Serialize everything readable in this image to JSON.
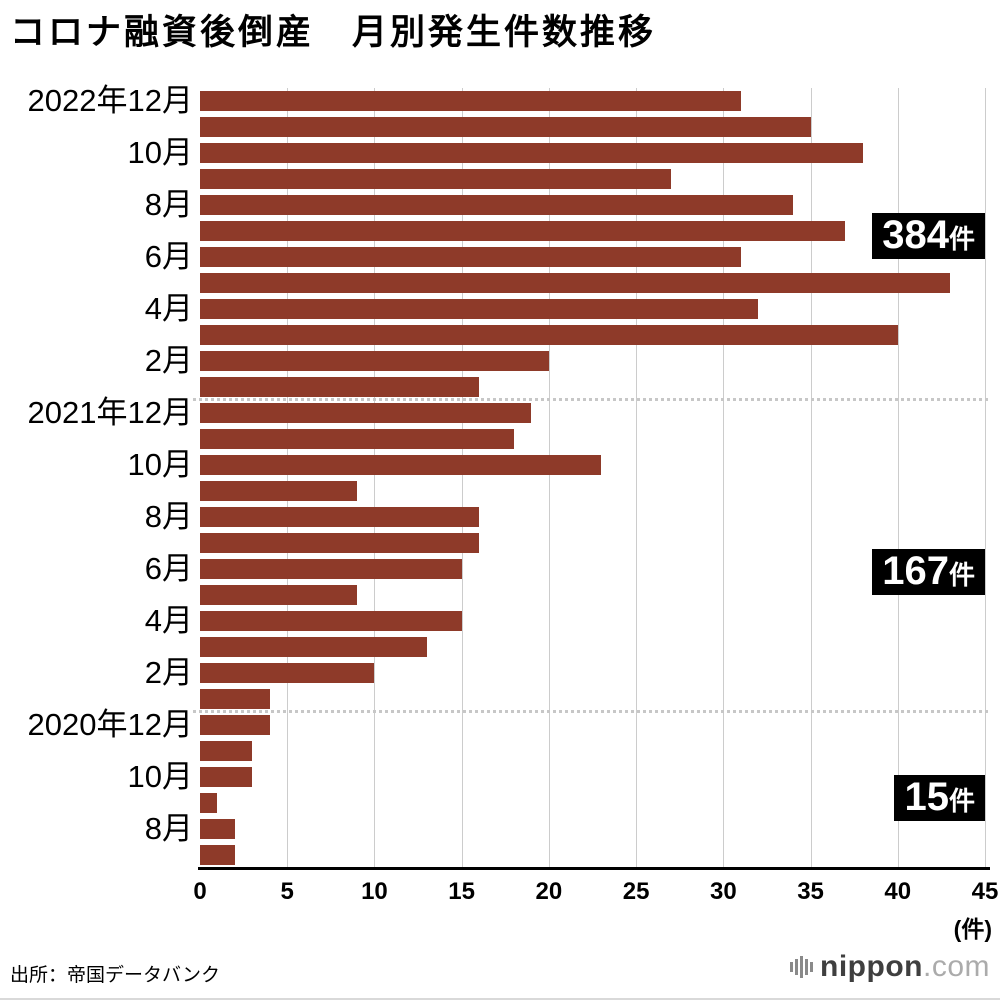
{
  "title": "コロナ融資後倒産　月別発生件数推移",
  "source": "出所：帝国データバンク",
  "logo": {
    "icon": "equalizer-bars-icon",
    "brand": "nippon",
    "suffix": ".com"
  },
  "chart_data": {
    "type": "bar",
    "orientation": "horizontal",
    "title": "コロナ融資後倒産　月別発生件数推移",
    "xlabel": "(件)",
    "xlim": [
      0,
      45
    ],
    "xticks": [
      0,
      5,
      10,
      15,
      20,
      25,
      30,
      35,
      40,
      45
    ],
    "grid": true,
    "bar_color": "#8e3a29",
    "rows": [
      {
        "label": "2022年12月",
        "value": 31
      },
      {
        "label": "",
        "value": 35
      },
      {
        "label": "10月",
        "value": 38
      },
      {
        "label": "",
        "value": 27
      },
      {
        "label": "8月",
        "value": 34
      },
      {
        "label": "",
        "value": 37
      },
      {
        "label": "6月",
        "value": 31
      },
      {
        "label": "",
        "value": 43
      },
      {
        "label": "4月",
        "value": 32
      },
      {
        "label": "",
        "value": 40
      },
      {
        "label": "2月",
        "value": 20
      },
      {
        "label": "",
        "value": 16
      },
      {
        "label": "2021年12月",
        "value": 19
      },
      {
        "label": "",
        "value": 18
      },
      {
        "label": "10月",
        "value": 23
      },
      {
        "label": "",
        "value": 9
      },
      {
        "label": "8月",
        "value": 16
      },
      {
        "label": "",
        "value": 16
      },
      {
        "label": "6月",
        "value": 15
      },
      {
        "label": "",
        "value": 9
      },
      {
        "label": "4月",
        "value": 15
      },
      {
        "label": "",
        "value": 13
      },
      {
        "label": "2月",
        "value": 10
      },
      {
        "label": "",
        "value": 4
      },
      {
        "label": "2020年12月",
        "value": 4
      },
      {
        "label": "",
        "value": 3
      },
      {
        "label": "10月",
        "value": 3
      },
      {
        "label": "",
        "value": 1
      },
      {
        "label": "8月",
        "value": 2
      },
      {
        "label": "",
        "value": 2
      }
    ],
    "year_totals": [
      {
        "number": "384",
        "unit": "件",
        "anchor_row": 5.7
      },
      {
        "number": "167",
        "unit": "件",
        "anchor_row": 18.6
      },
      {
        "number": "15",
        "unit": "件",
        "anchor_row": 27.3
      }
    ],
    "separators_after_row": [
      11,
      23
    ],
    "legend": "none"
  }
}
